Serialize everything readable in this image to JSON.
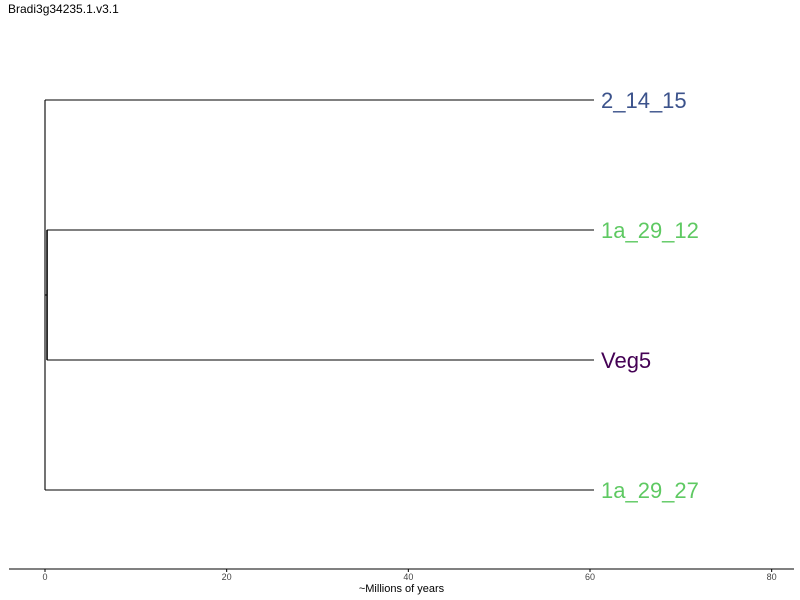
{
  "title": "Bradi3g34235.1.v3.1",
  "tree": {
    "tips": [
      {
        "label": "2_14_15",
        "color": "#3b528b",
        "branch_length": 60
      },
      {
        "label": "1a_29_12",
        "color": "#5ec962",
        "branch_length": 60
      },
      {
        "label": "Veg5",
        "color": "#440154",
        "branch_length": 60
      },
      {
        "label": "1a_29_27",
        "color": "#5ec962",
        "branch_length": 60
      }
    ],
    "internal_nodes_mya": [
      0,
      0.2,
      0.25
    ]
  },
  "axis": {
    "title": "~Millions of years",
    "range": [
      -4,
      82.5
    ],
    "ticks": [
      0,
      20,
      40,
      60,
      80
    ]
  }
}
